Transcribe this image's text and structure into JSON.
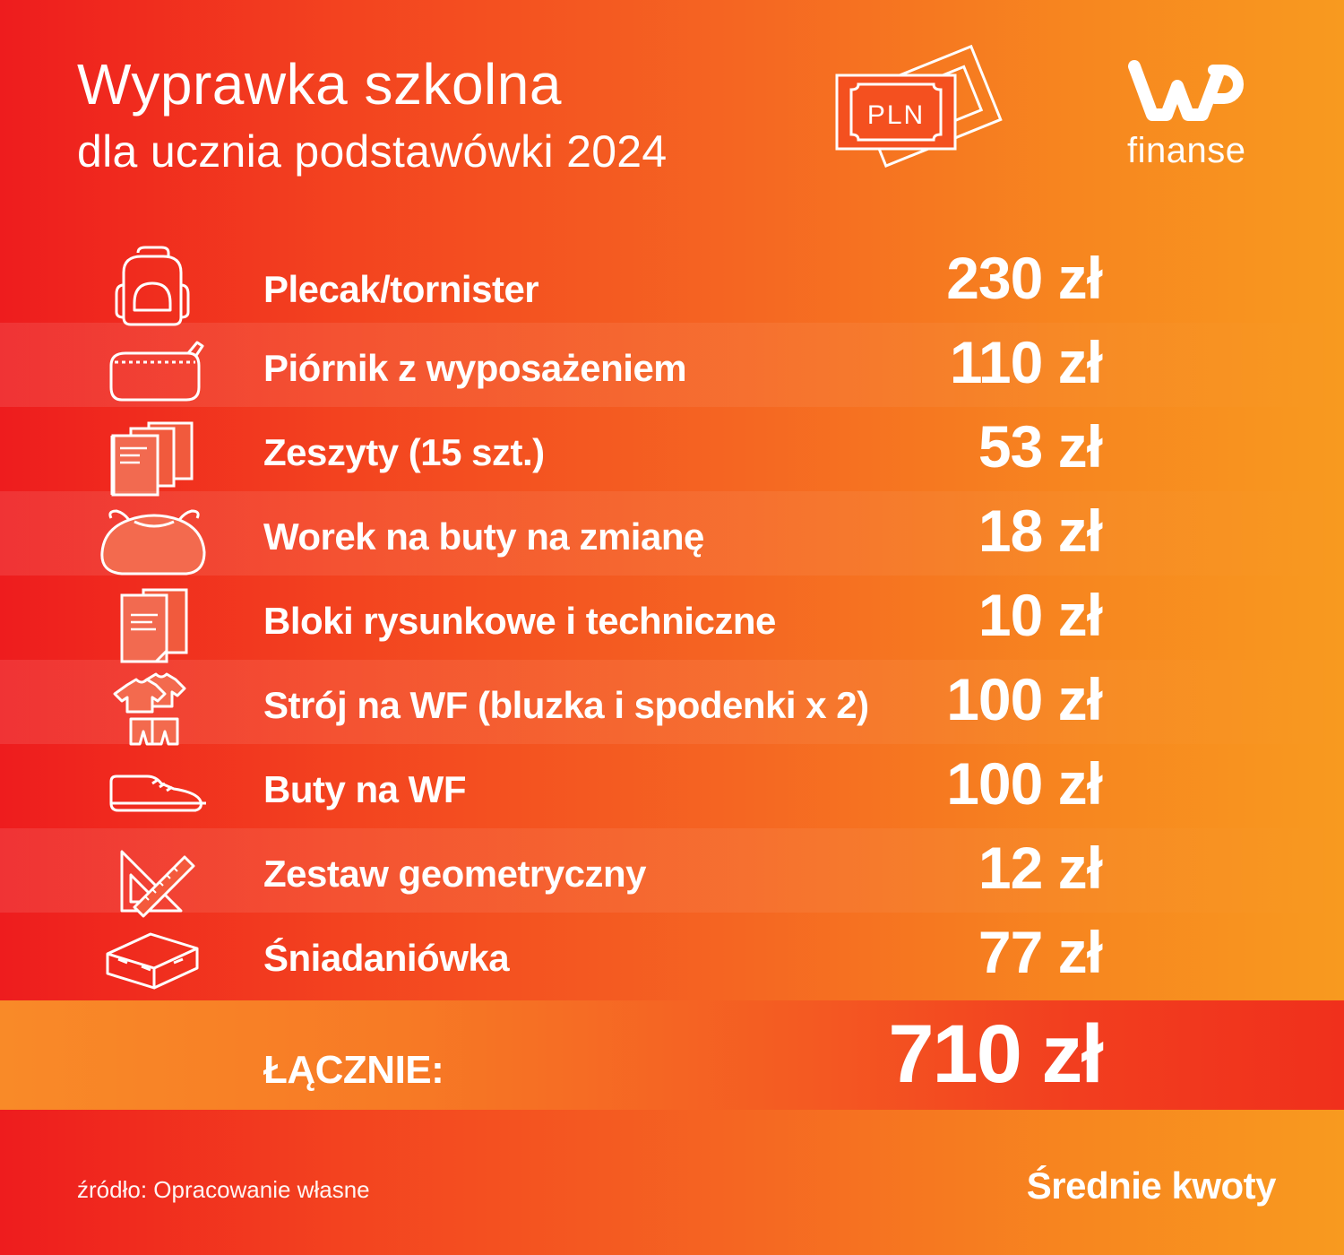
{
  "header": {
    "title": "Wyprawka szkolna",
    "subtitle": "dla ucznia podstawówki 2024",
    "banknote_label": "PLN",
    "logo_mark": "WP",
    "logo_text": "finanse"
  },
  "items": [
    {
      "label": "Plecak/tornister",
      "price": "230 zł",
      "icon": "backpack-icon"
    },
    {
      "label": "Piórnik z wyposażeniem",
      "price": "110 zł",
      "icon": "pencil-case-icon"
    },
    {
      "label": "Zeszyty (15 szt.)",
      "price": "53 zł",
      "icon": "notebooks-icon"
    },
    {
      "label": "Worek na buty na zmianę",
      "price": "18 zł",
      "icon": "shoe-bag-icon"
    },
    {
      "label": "Bloki rysunkowe i techniczne",
      "price": "10 zł",
      "icon": "drawing-pads-icon"
    },
    {
      "label": "Strój na WF (bluzka i spodenki x 2)",
      "price": "100 zł",
      "icon": "sports-outfit-icon"
    },
    {
      "label": "Buty na WF",
      "price": "100 zł",
      "icon": "sneaker-icon"
    },
    {
      "label": "Zestaw geometryczny",
      "price": "12 zł",
      "icon": "geometry-set-icon"
    },
    {
      "label": "Śniadaniówka",
      "price": "77 zł",
      "icon": "lunchbox-icon"
    }
  ],
  "total": {
    "label": "ŁĄCZNIE:",
    "value": "710 zł"
  },
  "footer": {
    "source": "źródło: Opracowanie własne",
    "note": "Średnie kwoty"
  },
  "colors": {
    "gradient_left": "#ee1c1e",
    "gradient_right": "#f89a1f",
    "text": "#ffffff"
  }
}
